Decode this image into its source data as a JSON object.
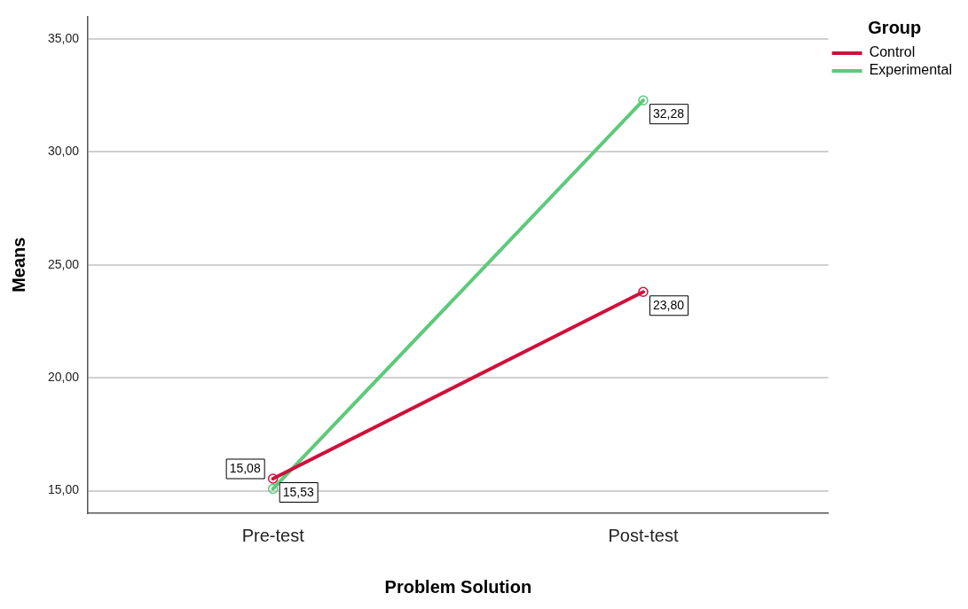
{
  "chart_data": {
    "type": "line",
    "xlabel": "Problem Solution",
    "ylabel": "Means",
    "legend_title": "Group",
    "categories": [
      "Pre-test",
      "Post-test"
    ],
    "series": [
      {
        "name": "Control",
        "color": "#d0103a",
        "values": [
          15.53,
          23.8
        ],
        "value_labels": [
          "15,53",
          "23,80"
        ]
      },
      {
        "name": "Experimental",
        "color": "#5ec97b",
        "values": [
          15.08,
          32.28
        ],
        "value_labels": [
          "15,08",
          "32,28"
        ]
      }
    ],
    "ylim": [
      14,
      36
    ],
    "yticks": [
      {
        "value": 15,
        "label": "15,00"
      },
      {
        "value": 20,
        "label": "20,00"
      },
      {
        "value": 25,
        "label": "25,00"
      },
      {
        "value": 30,
        "label": "30,00"
      },
      {
        "value": 35,
        "label": "35,00"
      }
    ],
    "grid": "y",
    "legend": "top right",
    "marker": "circle",
    "line_style": "solid"
  }
}
